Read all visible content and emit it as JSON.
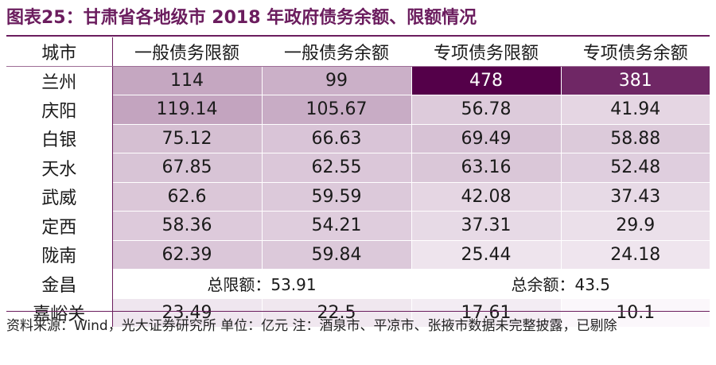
{
  "title": "图表25：甘肃省各地级市 2018 年政府债务余额、限额情况",
  "table": {
    "headers": [
      "城市",
      "一般债务限额",
      "一般债务余额",
      "专项债务限额",
      "专项债务余额"
    ],
    "rows": [
      {
        "city": "兰州",
        "values": [
          "114",
          "99",
          "478",
          "381"
        ],
        "levels": [
          114,
          99,
          478,
          381
        ]
      },
      {
        "city": "庆阳",
        "values": [
          "119.14",
          "105.67",
          "56.78",
          "41.94"
        ],
        "levels": [
          119.14,
          105.67,
          56.78,
          41.94
        ]
      },
      {
        "city": "白银",
        "values": [
          "75.12",
          "66.63",
          "69.49",
          "58.88"
        ],
        "levels": [
          75.12,
          66.63,
          69.49,
          58.88
        ]
      },
      {
        "city": "天水",
        "values": [
          "67.85",
          "62.55",
          "63.16",
          "52.48"
        ],
        "levels": [
          67.85,
          62.55,
          63.16,
          52.48
        ]
      },
      {
        "city": "武威",
        "values": [
          "62.6",
          "59.59",
          "42.08",
          "37.43"
        ],
        "levels": [
          62.6,
          59.59,
          42.08,
          37.43
        ]
      },
      {
        "city": "定西",
        "values": [
          "58.36",
          "54.21",
          "37.31",
          "29.9"
        ],
        "levels": [
          58.36,
          54.21,
          37.31,
          29.9
        ]
      },
      {
        "city": "陇南",
        "values": [
          "62.39",
          "59.84",
          "25.44",
          "24.18"
        ],
        "levels": [
          62.39,
          59.84,
          25.44,
          24.18
        ]
      }
    ],
    "merged_row": {
      "city": "金昌",
      "left": "总限额：53.91",
      "right": "总余额：43.5"
    },
    "last_row": {
      "city": "嘉峪关",
      "values": [
        "23.49",
        "22.5",
        "17.61",
        "10.1"
      ],
      "levels": [
        23.49,
        22.5,
        17.61,
        10.1
      ]
    }
  },
  "source_note": "资料来源：Wind，光大证券研究所 单位：亿元 注：酒泉市、平凉市、张掖市数据未完整披露，已剔除",
  "colors": {
    "accent": "#6b1d5e",
    "heat_low": "#fbf7fb",
    "heat_high": "#540049"
  }
}
